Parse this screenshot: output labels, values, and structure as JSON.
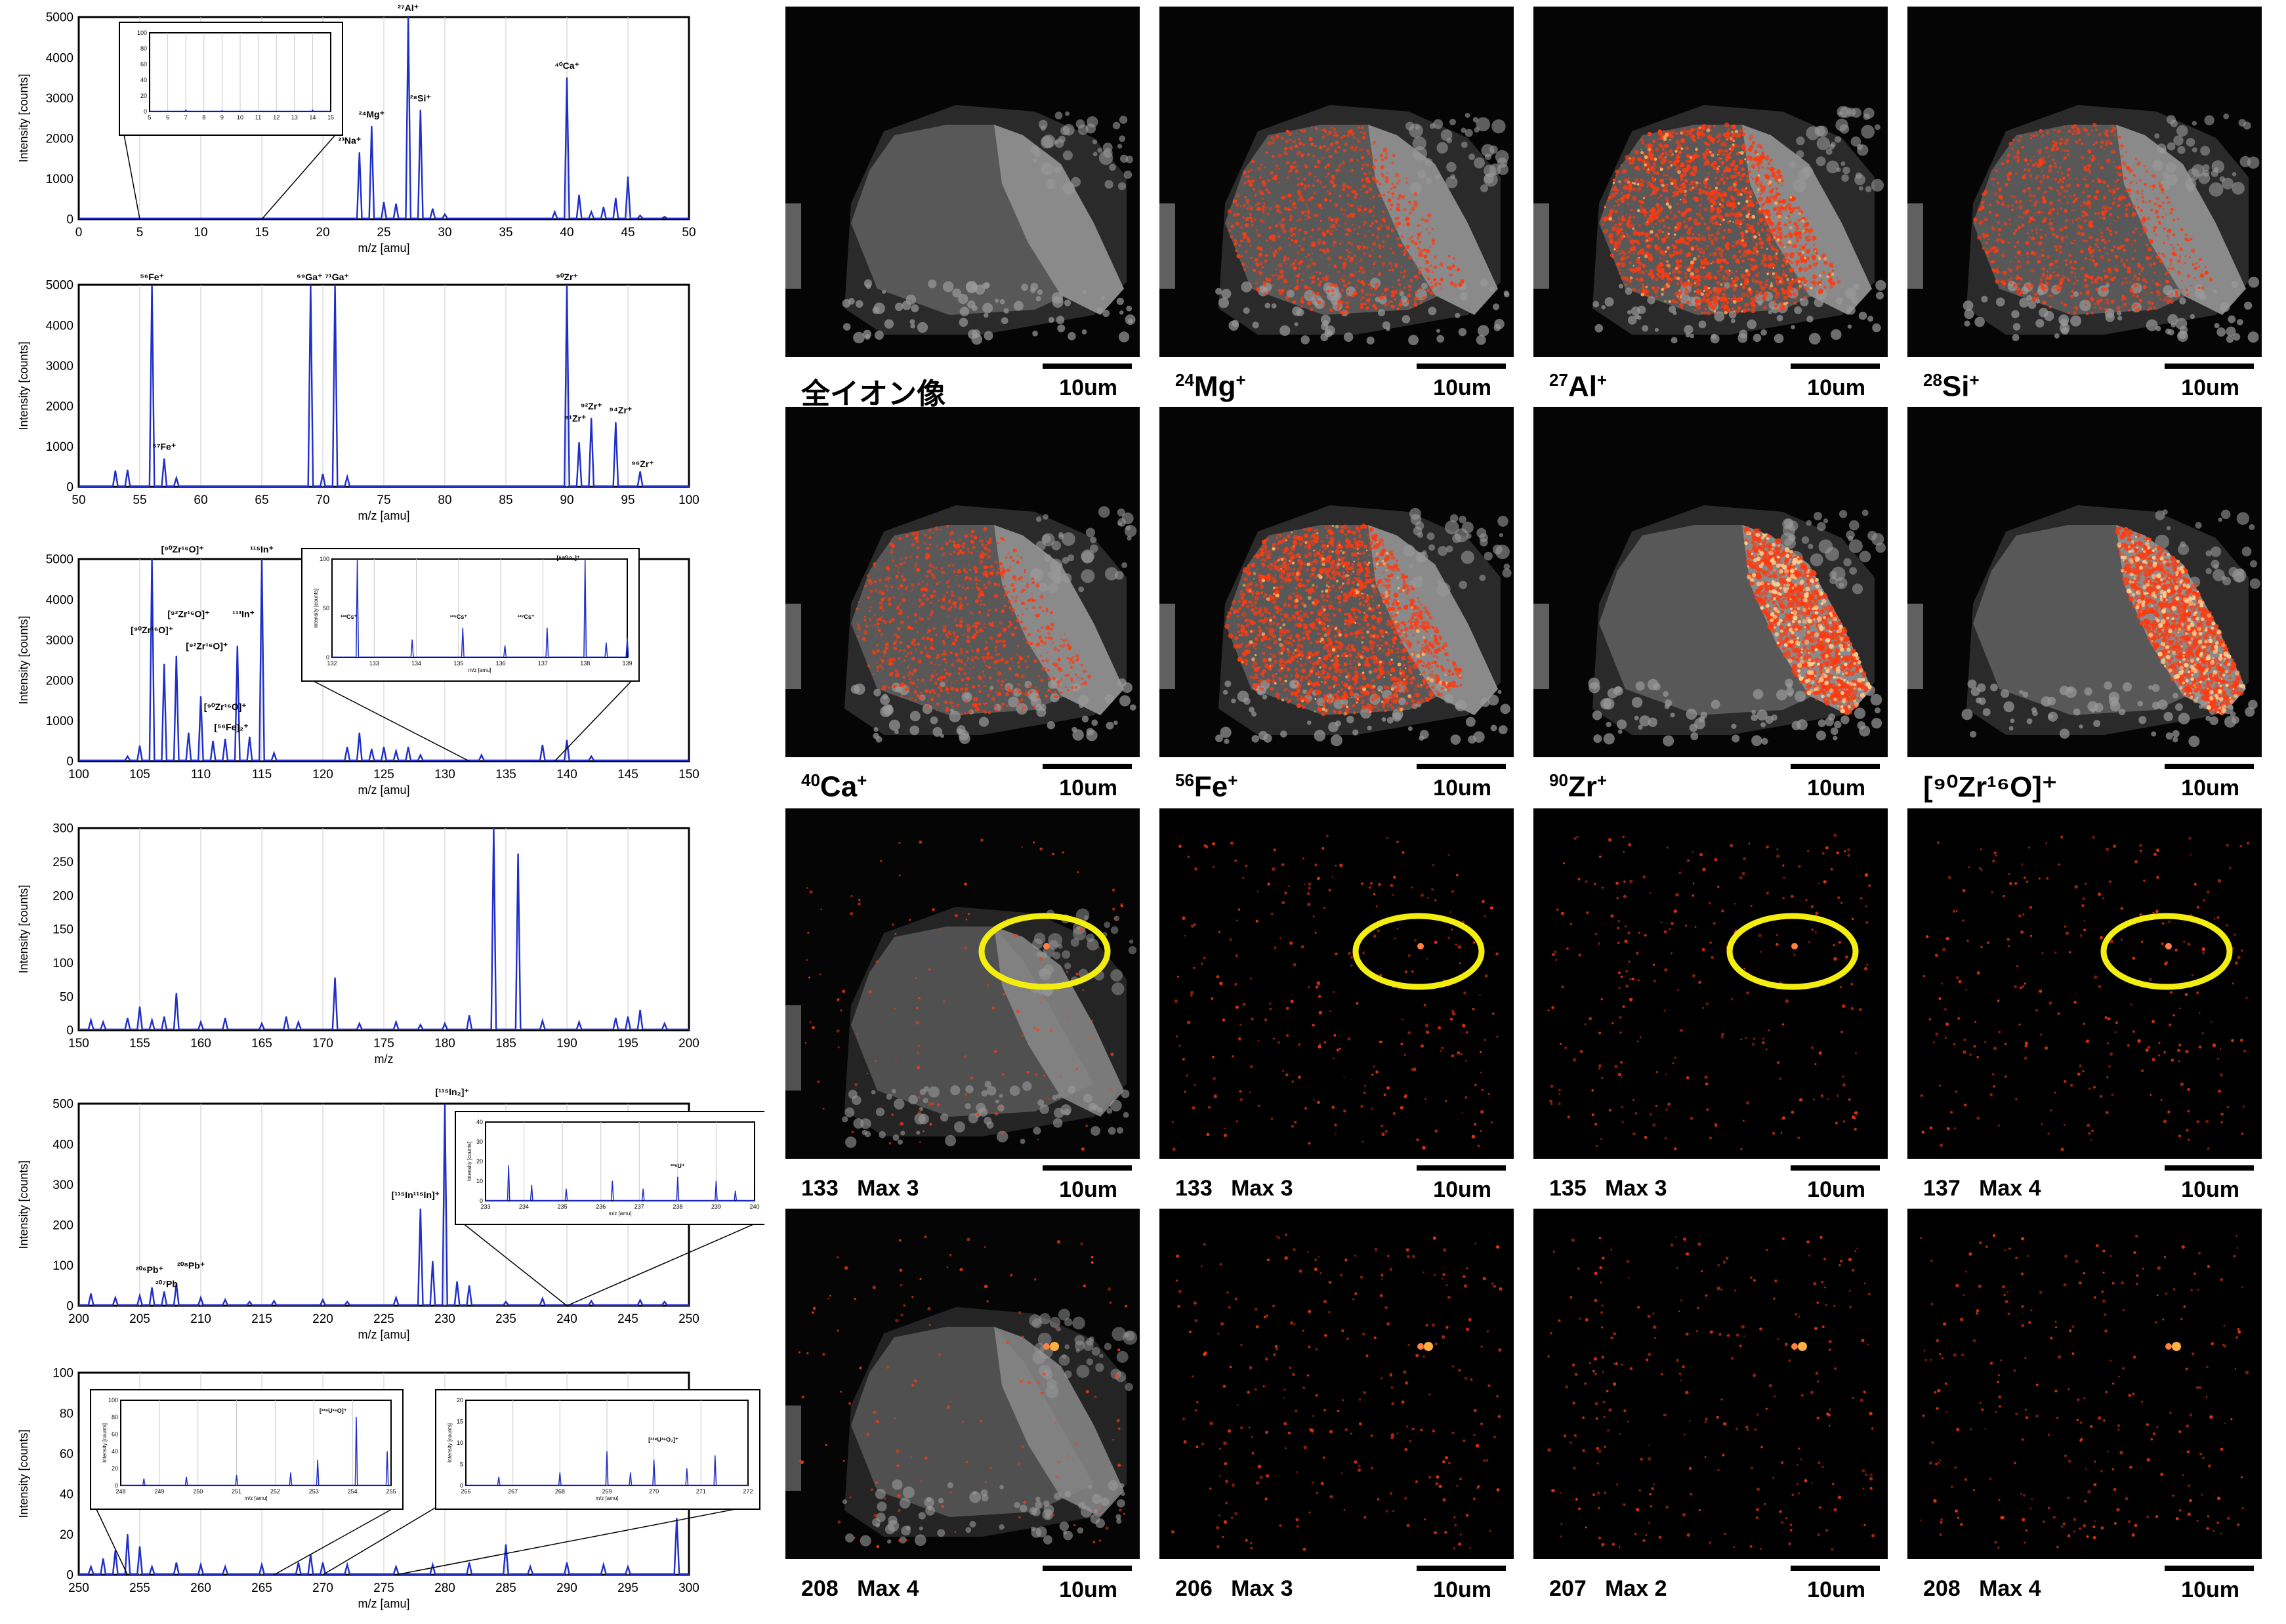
{
  "spectra": [
    {
      "xlim": [
        0,
        50
      ],
      "ylim": [
        0,
        5000
      ],
      "xstep": 5,
      "ystep": 1000,
      "xlabel": "m/z [amu]",
      "ylabel": "Intensity [counts]",
      "peaks": [
        [
          23,
          1650
        ],
        [
          24,
          2300
        ],
        [
          25,
          420
        ],
        [
          26,
          380
        ],
        [
          27,
          5000
        ],
        [
          28,
          2700
        ],
        [
          29,
          260
        ],
        [
          30,
          120
        ],
        [
          39,
          180
        ],
        [
          40,
          3500
        ],
        [
          41,
          600
        ],
        [
          42,
          180
        ],
        [
          43,
          300
        ],
        [
          44,
          520
        ],
        [
          45,
          1050
        ],
        [
          46,
          90
        ],
        [
          48,
          60
        ]
      ],
      "labels": [
        {
          "text": "²³Na⁺",
          "x": 22.2,
          "y": 1800
        },
        {
          "text": "²⁴Mg⁺",
          "x": 24,
          "y": 2450
        },
        {
          "text": "²⁷Al⁺",
          "x": 27,
          "y": 5080
        },
        {
          "text": "²⁸Si⁺",
          "x": 28,
          "y": 2850
        },
        {
          "text": "⁴⁰Ca⁺",
          "x": 40,
          "y": 3650
        }
      ],
      "inset": {
        "xlim": [
          5,
          15
        ],
        "ylim": [
          0,
          100
        ],
        "xstep": 1,
        "ystep": 20,
        "from": [
          5,
          15
        ],
        "peaks": [
          [
            7,
            2
          ],
          [
            9,
            1
          ],
          [
            14,
            2
          ]
        ]
      }
    },
    {
      "xlim": [
        50,
        100
      ],
      "ylim": [
        0,
        5000
      ],
      "xstep": 5,
      "ystep": 1000,
      "xlabel": "m/z [amu]",
      "ylabel": "Intensity [counts]",
      "peaks": [
        [
          53,
          400
        ],
        [
          54,
          420
        ],
        [
          56,
          5000
        ],
        [
          57,
          700
        ],
        [
          58,
          220
        ],
        [
          69,
          5000
        ],
        [
          70,
          320
        ],
        [
          71,
          5000
        ],
        [
          72,
          250
        ],
        [
          90,
          5000
        ],
        [
          91,
          1100
        ],
        [
          92,
          1700
        ],
        [
          94,
          1600
        ],
        [
          96,
          380
        ]
      ],
      "labels": [
        {
          "text": "⁵⁶Fe⁺",
          "x": 56,
          "y": 5050
        },
        {
          "text": "⁵⁷Fe⁺",
          "x": 57,
          "y": 850
        },
        {
          "text": "⁶⁹Ga⁺ ⁷¹Ga⁺",
          "x": 70,
          "y": 5050
        },
        {
          "text": "⁹⁰Zr⁺",
          "x": 90,
          "y": 5050
        },
        {
          "text": "⁹¹Zr⁺",
          "x": 90.7,
          "y": 1550
        },
        {
          "text": "⁹²Zr⁺",
          "x": 92,
          "y": 1850
        },
        {
          "text": "⁹⁴Zr⁺",
          "x": 94.4,
          "y": 1750
        },
        {
          "text": "⁹⁶Zr⁺",
          "x": 96.2,
          "y": 420
        }
      ]
    },
    {
      "xlim": [
        100,
        150
      ],
      "ylim": [
        0,
        5000
      ],
      "xstep": 5,
      "ystep": 1000,
      "xlabel": "m/z [amu]",
      "ylabel": "Intensity [counts]",
      "peaks": [
        [
          104,
          120
        ],
        [
          105,
          380
        ],
        [
          106,
          5000
        ],
        [
          107,
          2400
        ],
        [
          108,
          2600
        ],
        [
          109,
          700
        ],
        [
          110,
          1600
        ],
        [
          111,
          500
        ],
        [
          112,
          550
        ],
        [
          113,
          2850
        ],
        [
          114,
          600
        ],
        [
          115,
          5000
        ],
        [
          116,
          200
        ],
        [
          122,
          350
        ],
        [
          123,
          700
        ],
        [
          124,
          300
        ],
        [
          125,
          350
        ],
        [
          126,
          250
        ],
        [
          127,
          350
        ],
        [
          128,
          150
        ],
        [
          133,
          150
        ],
        [
          138,
          400
        ],
        [
          140,
          520
        ],
        [
          142,
          120
        ]
      ],
      "labels": [
        {
          "text": "[⁹⁰Zr¹⁶O]⁺",
          "x": 108.5,
          "y": 5100
        },
        {
          "text": "¹¹⁵In⁺",
          "x": 115,
          "y": 5100
        },
        {
          "text": "[⁹⁰Zr¹⁶O]⁺",
          "x": 106,
          "y": 3100
        },
        {
          "text": "[⁹²Zr¹⁶O]⁺",
          "x": 109,
          "y": 3500
        },
        {
          "text": "[⁹²Zr¹⁶O]⁺",
          "x": 110.5,
          "y": 2700
        },
        {
          "text": "¹¹³In⁺",
          "x": 113.5,
          "y": 3500
        },
        {
          "text": "[⁹⁰Zr¹⁶O]⁺",
          "x": 112,
          "y": 1200
        },
        {
          "text": "[⁵⁶Fe]₂⁺",
          "x": 112.5,
          "y": 700
        }
      ],
      "inset": {
        "xlim": [
          132,
          139
        ],
        "ylim": [
          0,
          100
        ],
        "xstep": 1,
        "ystep": 50,
        "from": [
          132,
          139
        ],
        "peaks": [
          [
            132.6,
            100
          ],
          [
            133.9,
            18
          ],
          [
            135.1,
            30
          ],
          [
            136.1,
            12
          ],
          [
            137.1,
            30
          ],
          [
            138,
            100
          ],
          [
            138.5,
            15
          ],
          [
            139,
            20
          ]
        ],
        "labels": [
          {
            "text": "¹³³Cs⁺",
            "x": 132.4,
            "y": 38
          },
          {
            "text": "¹³⁵Cs⁺",
            "x": 135,
            "y": 38
          },
          {
            "text": "¹³⁷Cs⁺",
            "x": 136.6,
            "y": 38
          },
          {
            "text": "[⁶⁹Ga₂]⁺",
            "x": 137.6,
            "y": 98
          }
        ],
        "xlabel": "m/z [amu]",
        "ylabel": "Intensity [counts]"
      }
    },
    {
      "xlim": [
        150,
        200
      ],
      "ylim": [
        0,
        300
      ],
      "xstep": 5,
      "ystep": 50,
      "xlabel": "m/z",
      "ylabel": "Intensity [counts]",
      "peaks": [
        [
          151,
          15
        ],
        [
          152,
          12
        ],
        [
          154,
          18
        ],
        [
          155,
          35
        ],
        [
          156,
          15
        ],
        [
          157,
          20
        ],
        [
          158,
          55
        ],
        [
          160,
          12
        ],
        [
          162,
          18
        ],
        [
          165,
          10
        ],
        [
          167,
          20
        ],
        [
          168,
          12
        ],
        [
          171,
          78
        ],
        [
          173,
          10
        ],
        [
          176,
          12
        ],
        [
          178,
          8
        ],
        [
          180,
          10
        ],
        [
          182,
          22
        ],
        [
          184,
          300
        ],
        [
          186,
          262
        ],
        [
          188,
          14
        ],
        [
          191,
          12
        ],
        [
          194,
          18
        ],
        [
          195,
          20
        ],
        [
          196,
          30
        ],
        [
          198,
          10
        ]
      ],
      "labels": []
    },
    {
      "xlim": [
        200,
        250
      ],
      "ylim": [
        0,
        500
      ],
      "xstep": 5,
      "ystep": 100,
      "xlabel": "m/z [amu]",
      "ylabel": "Intensity [counts]",
      "peaks": [
        [
          201,
          30
        ],
        [
          203,
          20
        ],
        [
          205,
          25
        ],
        [
          206,
          45
        ],
        [
          207,
          35
        ],
        [
          208,
          55
        ],
        [
          210,
          20
        ],
        [
          212,
          15
        ],
        [
          214,
          10
        ],
        [
          216,
          12
        ],
        [
          220,
          15
        ],
        [
          222,
          10
        ],
        [
          226,
          20
        ],
        [
          228,
          240
        ],
        [
          229,
          110
        ],
        [
          230,
          500
        ],
        [
          231,
          60
        ],
        [
          232,
          50
        ],
        [
          235,
          10
        ],
        [
          238,
          18
        ],
        [
          242,
          12
        ],
        [
          246,
          14
        ],
        [
          248,
          10
        ]
      ],
      "labels": [
        {
          "text": "²⁰⁶Pb⁺",
          "x": 205.8,
          "y": 75
        },
        {
          "text": "²⁰⁷Pb",
          "x": 207.2,
          "y": 40
        },
        {
          "text": "²⁰⁸Pb⁺",
          "x": 209.2,
          "y": 85
        },
        {
          "text": "[¹¹⁵In¹¹⁵In]⁺",
          "x": 227.6,
          "y": 260
        },
        {
          "text": "[¹¹⁵In₂]⁺",
          "x": 230.6,
          "y": 515
        }
      ],
      "inset": {
        "xlim": [
          233,
          240
        ],
        "ylim": [
          0,
          40
        ],
        "xstep": 1,
        "ystep": 10,
        "from": [
          240,
          240
        ],
        "peaks": [
          [
            233.6,
            18
          ],
          [
            234.2,
            8
          ],
          [
            235.1,
            6
          ],
          [
            236.3,
            10
          ],
          [
            237.1,
            6
          ],
          [
            238,
            12
          ],
          [
            239,
            10
          ],
          [
            239.5,
            5
          ]
        ],
        "labels": [
          {
            "text": "²³⁸U⁺",
            "x": 238,
            "y": 16
          }
        ],
        "xlabel": "m/z [amu]",
        "ylabel": "Intensity [counts]"
      }
    },
    {
      "xlim": [
        250,
        300
      ],
      "ylim": [
        0,
        100
      ],
      "xstep": 5,
      "ystep": 20,
      "xlabel": "m/z [amu]",
      "ylabel": "Intensity [counts]",
      "peaks": [
        [
          251,
          4
        ],
        [
          252,
          8
        ],
        [
          253,
          12
        ],
        [
          254,
          20
        ],
        [
          255,
          14
        ],
        [
          256,
          4
        ],
        [
          258,
          6
        ],
        [
          260,
          5
        ],
        [
          262,
          4
        ],
        [
          265,
          5
        ],
        [
          268,
          6
        ],
        [
          269,
          10
        ],
        [
          270,
          6
        ],
        [
          272,
          5
        ],
        [
          276,
          4
        ],
        [
          279,
          5
        ],
        [
          282,
          6
        ],
        [
          285,
          15
        ],
        [
          287,
          4
        ],
        [
          290,
          6
        ],
        [
          293,
          5
        ],
        [
          295,
          4
        ],
        [
          299,
          28
        ]
      ],
      "labels": [],
      "insets": [
        {
          "xlim": [
            248,
            255
          ],
          "ylim": [
            0,
            100
          ],
          "xstep": 1,
          "ystep": 20,
          "from": [
            254,
            266
          ],
          "peaks": [
            [
              248.6,
              8
            ],
            [
              249.7,
              10
            ],
            [
              251,
              12
            ],
            [
              252.4,
              15
            ],
            [
              253.1,
              30
            ],
            [
              254.1,
              80
            ],
            [
              254.9,
              40
            ]
          ],
          "labels": [
            {
              "text": "[²³⁸U¹⁶O]⁺",
              "x": 253.5,
              "y": 84
            }
          ],
          "xlabel": "m/z [amu]",
          "ylabel": "Intensity [counts]"
        },
        {
          "xlim": [
            266,
            272
          ],
          "ylim": [
            0,
            20
          ],
          "xstep": 1,
          "ystep": 5,
          "from": [
            270,
            276
          ],
          "peaks": [
            [
              266.7,
              2
            ],
            [
              268,
              3
            ],
            [
              269,
              8
            ],
            [
              269.5,
              3
            ],
            [
              270,
              6
            ],
            [
              270.7,
              4
            ],
            [
              271.3,
              7
            ]
          ],
          "labels": [
            {
              "text": "[²³⁸U¹⁶O₂]⁺",
              "x": 270.2,
              "y": 10
            }
          ],
          "xlabel": "m/z [amu]",
          "ylabel": "Intensity [counts]"
        }
      ]
    }
  ],
  "images": [
    {
      "label": "全イオン像",
      "type": "gray",
      "heat": "none"
    },
    {
      "label_mass": "24",
      "label_el": "Mg",
      "type": "overlay",
      "heat": "tri"
    },
    {
      "label_mass": "27",
      "label_el": "Al",
      "type": "overlay",
      "heat": "tri-strong"
    },
    {
      "label_mass": "28",
      "label_el": "Si",
      "type": "overlay",
      "heat": "tri"
    },
    {
      "label_mass": "40",
      "label_el": "Ca",
      "type": "overlay",
      "heat": "tri"
    },
    {
      "label_mass": "56",
      "label_el": "Fe",
      "type": "overlay",
      "heat": "tri-strong"
    },
    {
      "label_mass": "90",
      "label_el": "Zr",
      "type": "overlay",
      "heat": "band"
    },
    {
      "label_complex": "[⁹⁰Zr¹⁶O]⁺",
      "type": "overlay",
      "heat": "band"
    },
    {
      "label_plain": "133   Max 3",
      "type": "overlay-dim",
      "heat": "circle"
    },
    {
      "label_plain": "133   Max 3",
      "type": "dark",
      "heat": "circle"
    },
    {
      "label_plain": "135   Max 3",
      "type": "dark",
      "heat": "circle"
    },
    {
      "label_plain": "137   Max 4",
      "type": "dark",
      "heat": "circle"
    },
    {
      "label_plain": "208   Max 4",
      "type": "overlay-dim",
      "heat": "sparse"
    },
    {
      "label_plain": "206   Max 3",
      "type": "dark",
      "heat": "sparse"
    },
    {
      "label_plain": "207   Max 2",
      "type": "dark",
      "heat": "sparse"
    },
    {
      "label_plain": "208   Max 4",
      "type": "dark",
      "heat": "sparse"
    }
  ],
  "scalebar_label": "10um",
  "colors": {
    "spectrum": "#1f2ec8",
    "heat": "#ff3a10",
    "ring": "#f4ee10"
  }
}
